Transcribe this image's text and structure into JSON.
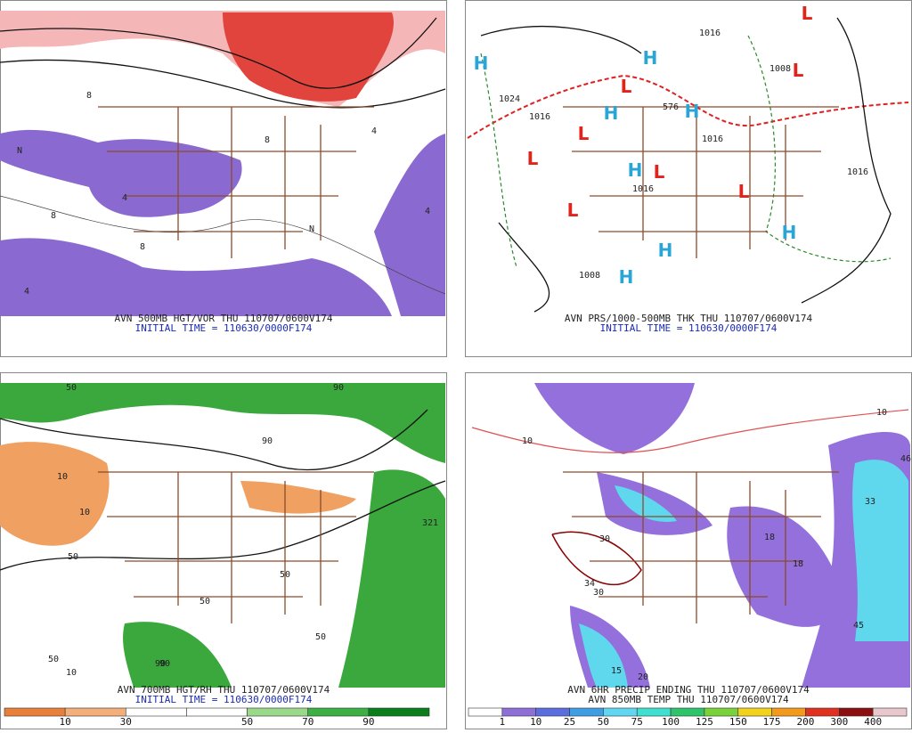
{
  "panels": [
    {
      "caption": "AVN 500MB HGT/VOR THU 110707/0600V174",
      "initial_time": "INITIAL TIME = 110630/0000F174",
      "map_labels": [
        "8",
        "4",
        "N",
        "8",
        "4",
        "N",
        "8",
        "4",
        "8",
        "4"
      ]
    },
    {
      "caption": "AVN PRS/1000-500MB THK THU 110707/0600V174",
      "initial_time": "INITIAL TIME = 110630/0000F174",
      "map_labels": [
        "H",
        "H",
        "H",
        "H",
        "H",
        "H",
        "H",
        "H",
        "L",
        "L",
        "L",
        "L",
        "L",
        "L",
        "L",
        "L",
        "1024",
        "1016",
        "1016",
        "1008",
        "1016",
        "1016",
        "576",
        "1016",
        "1008"
      ]
    },
    {
      "caption": "AVN 700MB HGT/RH THU 110707/0600V174",
      "initial_time": "INITIAL TIME = 110630/0000F174",
      "map_labels": [
        "50",
        "90",
        "10",
        "10",
        "50",
        "50",
        "90",
        "50",
        "90",
        "50",
        "10",
        "50",
        "90",
        "321"
      ],
      "colorbar": {
        "labels": [
          10,
          30,
          50,
          70,
          90
        ]
      }
    },
    {
      "caption": "AVN 6HR PRECIP ENDING THU 110707/0600V174",
      "initial_time": "AVN 850MB TEMP THU 110707/0600V174",
      "map_labels": [
        "10",
        "46",
        "33",
        "18",
        "18",
        "45",
        "30",
        "34",
        "30",
        "15",
        "20",
        "10"
      ],
      "colorbar": {
        "labels": [
          1,
          10,
          25,
          50,
          75,
          100,
          125,
          150,
          175,
          200,
          300,
          400
        ]
      }
    }
  ]
}
